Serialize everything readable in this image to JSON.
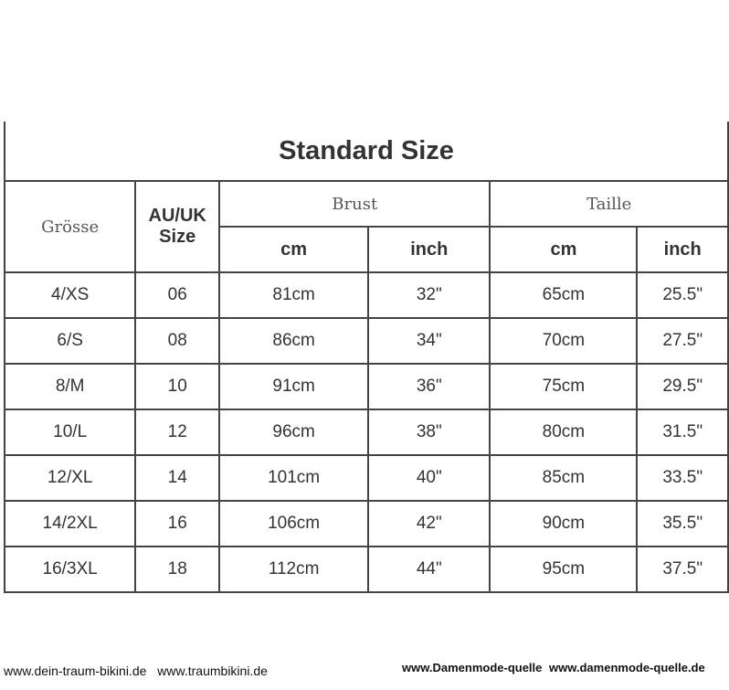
{
  "title": "Standard Size",
  "headers": {
    "size": "Grösse",
    "au_uk": "AU/UK",
    "au_uk2": "Size",
    "brust": "Brust",
    "taille": "Taille",
    "cm": "cm",
    "inch": "inch"
  },
  "rows": [
    [
      "4/XS",
      "06",
      "81cm",
      "32\"",
      "65cm",
      "25.5\""
    ],
    [
      "6/S",
      "08",
      "86cm",
      "34\"",
      "70cm",
      "27.5\""
    ],
    [
      "8/M",
      "10",
      "91cm",
      "36\"",
      "75cm",
      "29.5\""
    ],
    [
      "10/L",
      "12",
      "96cm",
      "38\"",
      "80cm",
      "31.5\""
    ],
    [
      "12/XL",
      "14",
      "101cm",
      "40\"",
      "85cm",
      "33.5\""
    ],
    [
      "14/2XL",
      "16",
      "106cm",
      "42\"",
      "90cm",
      "35.5\""
    ],
    [
      "16/3XL",
      "18",
      "112cm",
      "44\"",
      "95cm",
      "37.5\""
    ]
  ],
  "watermarks": {
    "left_a": "www.dein-traum-bikini.de",
    "left_b": "www.traumbikini.de",
    "right_a": "www.Damenmode-quelle",
    "right_b": "www.damenmode-quelle.de"
  }
}
